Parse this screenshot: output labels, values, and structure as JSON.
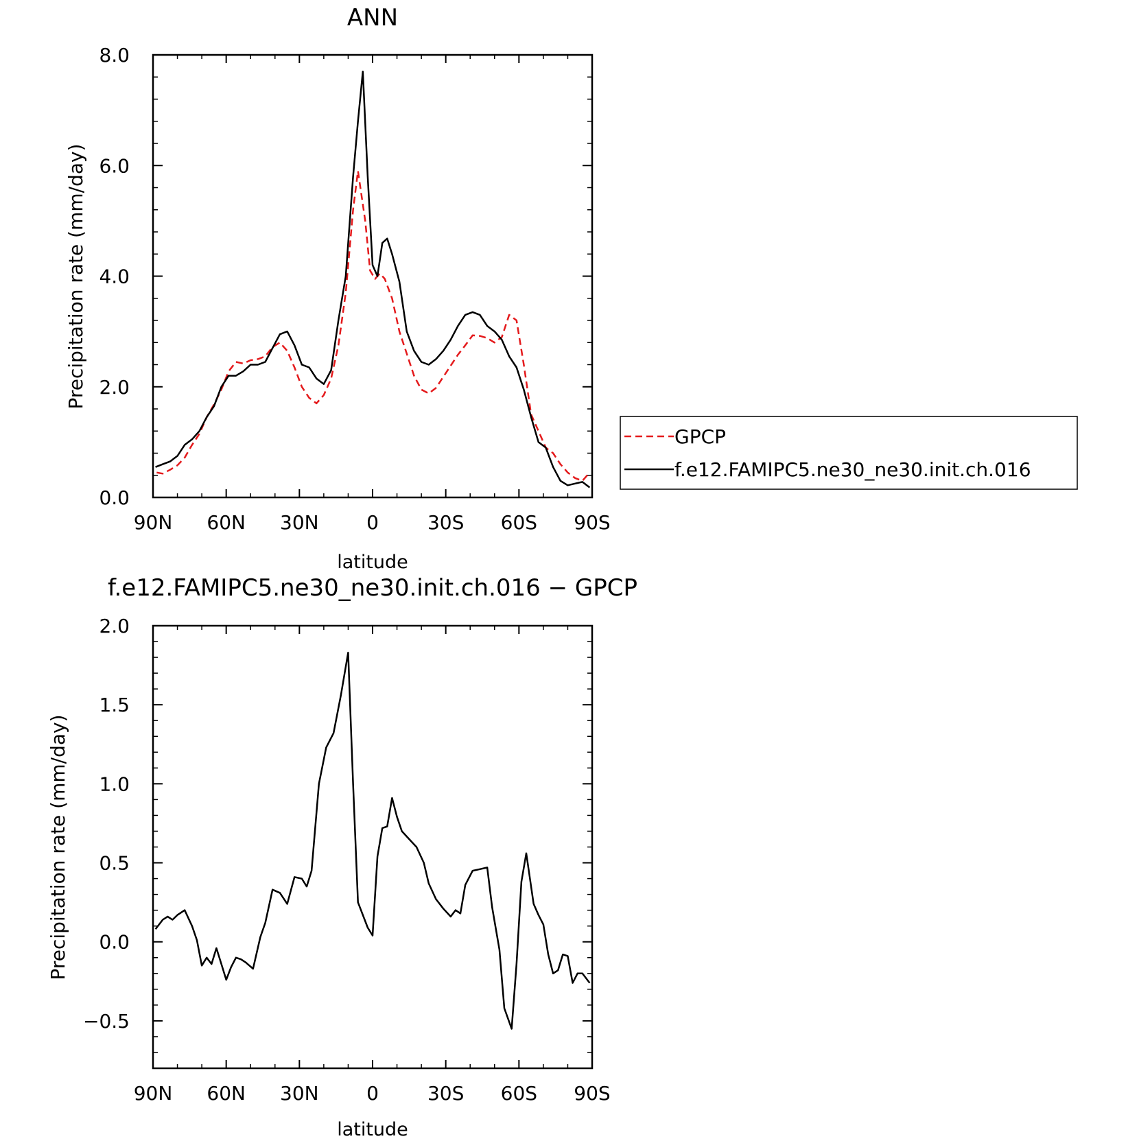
{
  "chart_data": [
    {
      "type": "line",
      "title": "ANN",
      "xlabel": "latitude",
      "ylabel": "Precipitation rate (mm/day)",
      "xlim": [
        90,
        -90
      ],
      "ylim": [
        0,
        8
      ],
      "xticks": [
        {
          "value": 90,
          "label": "90N"
        },
        {
          "value": 60,
          "label": "60N"
        },
        {
          "value": 30,
          "label": "30N"
        },
        {
          "value": 0,
          "label": "0"
        },
        {
          "value": -30,
          "label": "30S"
        },
        {
          "value": -60,
          "label": "60S"
        },
        {
          "value": -90,
          "label": "90S"
        }
      ],
      "yticks": [
        {
          "value": 0,
          "label": "0.0"
        },
        {
          "value": 2,
          "label": "2.0"
        },
        {
          "value": 4,
          "label": "4.0"
        },
        {
          "value": 6,
          "label": "6.0"
        },
        {
          "value": 8,
          "label": "8.0"
        }
      ],
      "grid": false,
      "legend_position": "outside-right",
      "series": [
        {
          "name": "GPCP",
          "color": "#e41a1c",
          "dash": "dashed",
          "x": [
            88.5,
            86,
            83,
            80,
            77,
            74,
            71,
            68,
            65,
            62,
            59,
            56,
            53,
            50,
            47,
            44,
            41,
            38,
            35,
            32,
            29,
            26,
            23,
            20,
            17,
            14,
            11,
            8,
            6,
            3,
            1,
            -1,
            -3,
            -5,
            -8,
            -11,
            -14,
            -17,
            -20,
            -23,
            -26,
            -29,
            -32,
            -35,
            -38,
            -41,
            -44,
            -47,
            -50,
            -53,
            -56,
            -59,
            -62,
            -65,
            -68,
            -71,
            -74,
            -77,
            -80,
            -83,
            -86,
            -89
          ],
          "y": [
            0.45,
            0.43,
            0.5,
            0.58,
            0.72,
            0.95,
            1.15,
            1.45,
            1.68,
            1.95,
            2.28,
            2.45,
            2.42,
            2.48,
            2.5,
            2.55,
            2.72,
            2.8,
            2.65,
            2.35,
            2.0,
            1.8,
            1.7,
            1.85,
            2.15,
            2.75,
            3.7,
            5.2,
            5.9,
            5.0,
            4.1,
            3.95,
            4.05,
            3.95,
            3.6,
            3.0,
            2.6,
            2.2,
            1.95,
            1.88,
            1.98,
            2.18,
            2.38,
            2.58,
            2.75,
            2.93,
            2.92,
            2.88,
            2.8,
            2.9,
            3.3,
            3.2,
            2.4,
            1.5,
            1.2,
            0.9,
            0.8,
            0.6,
            0.45,
            0.35,
            0.3,
            0.45
          ]
        },
        {
          "name": "f.e12.FAMIPC5.ne30_ne30.init.ch.016",
          "color": "#000000",
          "dash": "solid",
          "x": [
            89,
            86,
            83,
            80,
            77,
            74,
            71,
            68,
            65,
            62,
            59,
            56,
            53,
            50,
            47,
            44,
            41,
            38,
            35,
            32,
            29,
            26,
            23,
            20,
            17,
            14,
            11,
            8,
            6,
            4,
            2,
            0,
            -2,
            -4,
            -6,
            -8,
            -11,
            -14,
            -17,
            -20,
            -23,
            -26,
            -29,
            -32,
            -35,
            -38,
            -41,
            -44,
            -47,
            -50,
            -53,
            -56,
            -59,
            -62,
            -65,
            -68,
            -71,
            -74,
            -77,
            -80,
            -83,
            -86,
            -89
          ],
          "y": [
            0.55,
            0.6,
            0.65,
            0.75,
            0.95,
            1.05,
            1.2,
            1.45,
            1.65,
            2.0,
            2.2,
            2.2,
            2.28,
            2.4,
            2.4,
            2.45,
            2.7,
            2.95,
            3.0,
            2.75,
            2.4,
            2.35,
            2.15,
            2.05,
            2.3,
            3.2,
            4.0,
            5.8,
            6.8,
            7.7,
            5.8,
            4.2,
            4.0,
            4.6,
            4.68,
            4.4,
            3.9,
            3.0,
            2.65,
            2.45,
            2.4,
            2.5,
            2.65,
            2.85,
            3.1,
            3.3,
            3.35,
            3.3,
            3.1,
            3.0,
            2.85,
            2.55,
            2.35,
            1.95,
            1.45,
            1.0,
            0.9,
            0.55,
            0.3,
            0.22,
            0.25,
            0.28,
            0.18
          ]
        }
      ],
      "legend_entries": [
        "GPCP",
        "f.e12.FAMIPC5.ne30_ne30.init.ch.016"
      ]
    },
    {
      "type": "line",
      "title": "f.e12.FAMIPC5.ne30_ne30.init.ch.016 − GPCP",
      "xlabel": "latitude",
      "ylabel": "Precipitation rate (mm/day)",
      "xlim": [
        90,
        -90
      ],
      "ylim": [
        -0.8,
        2.0
      ],
      "xticks": [
        {
          "value": 90,
          "label": "90N"
        },
        {
          "value": 60,
          "label": "60N"
        },
        {
          "value": 30,
          "label": "30N"
        },
        {
          "value": 0,
          "label": "0"
        },
        {
          "value": -30,
          "label": "30S"
        },
        {
          "value": -60,
          "label": "60S"
        },
        {
          "value": -90,
          "label": "90S"
        }
      ],
      "yticks": [
        {
          "value": -0.5,
          "label": "−0.5"
        },
        {
          "value": 0,
          "label": "0.0"
        },
        {
          "value": 0.5,
          "label": "0.5"
        },
        {
          "value": 1.0,
          "label": "1.0"
        },
        {
          "value": 1.5,
          "label": "1.5"
        },
        {
          "value": 2.0,
          "label": "2.0"
        }
      ],
      "grid": false,
      "series": [
        {
          "color": "#000000",
          "dash": "solid",
          "x": [
            89,
            86,
            84,
            82,
            80,
            77,
            74,
            72,
            70,
            68,
            66,
            64,
            62,
            60,
            58,
            56,
            54,
            52,
            49,
            46,
            44,
            41,
            38,
            35,
            32,
            29,
            27,
            25,
            22,
            19,
            16,
            13,
            10,
            8,
            6,
            2,
            0,
            -2,
            -4,
            -6,
            -8,
            -10,
            -12,
            -15,
            -18,
            -21,
            -23,
            -26,
            -29,
            -32,
            -34,
            -36,
            -38,
            -41,
            -44,
            -47,
            -49,
            -52,
            -54,
            -57,
            -59,
            -61,
            -63,
            -66,
            -68,
            -70,
            -72,
            -74,
            -76,
            -78,
            -80,
            -82,
            -84,
            -86,
            -89
          ],
          "y": [
            0.08,
            0.14,
            0.16,
            0.14,
            0.17,
            0.2,
            0.1,
            0.01,
            -0.15,
            -0.1,
            -0.14,
            -0.04,
            -0.14,
            -0.24,
            -0.16,
            -0.1,
            -0.11,
            -0.13,
            -0.17,
            0.03,
            0.12,
            0.33,
            0.31,
            0.24,
            0.41,
            0.4,
            0.35,
            0.45,
            1.0,
            1.23,
            1.32,
            1.56,
            1.83,
            1.0,
            0.25,
            0.09,
            0.04,
            0.54,
            0.72,
            0.73,
            0.91,
            0.79,
            0.7,
            0.65,
            0.6,
            0.5,
            0.37,
            0.27,
            0.21,
            0.16,
            0.2,
            0.18,
            0.36,
            0.45,
            0.46,
            0.47,
            0.22,
            -0.05,
            -0.42,
            -0.55,
            -0.14,
            0.38,
            0.56,
            0.24,
            0.17,
            0.11,
            -0.08,
            -0.2,
            -0.18,
            -0.08,
            -0.09,
            -0.26,
            -0.2,
            -0.2,
            -0.26
          ]
        }
      ]
    }
  ]
}
